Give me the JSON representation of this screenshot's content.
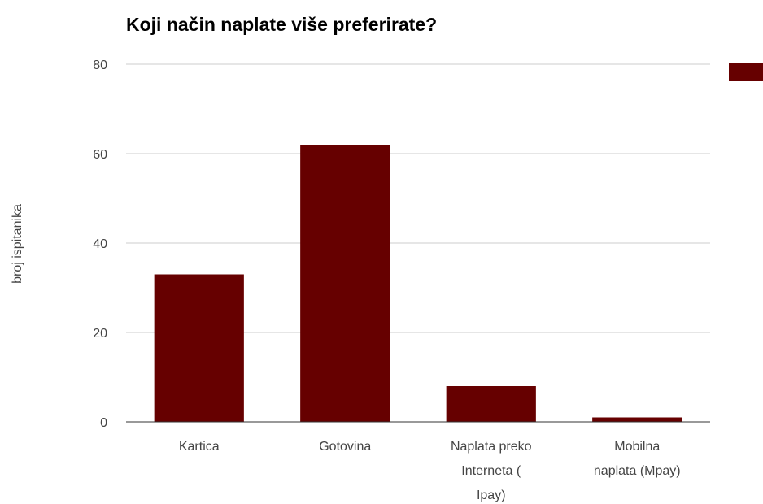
{
  "chart_data": {
    "type": "bar",
    "title": "Koji način naplate više preferirate?",
    "y_label": "broj ispitanika",
    "categories": [
      "Kartica",
      "Gotovina",
      "Naplata preko Interneta ( Ipay)",
      "Mobilna naplata (Mpay)"
    ],
    "values": [
      33,
      62,
      8,
      1
    ],
    "color": "#660000",
    "ylim": [
      0,
      80
    ],
    "yticks": [
      0,
      20,
      40,
      60,
      80
    ],
    "grid": true
  }
}
